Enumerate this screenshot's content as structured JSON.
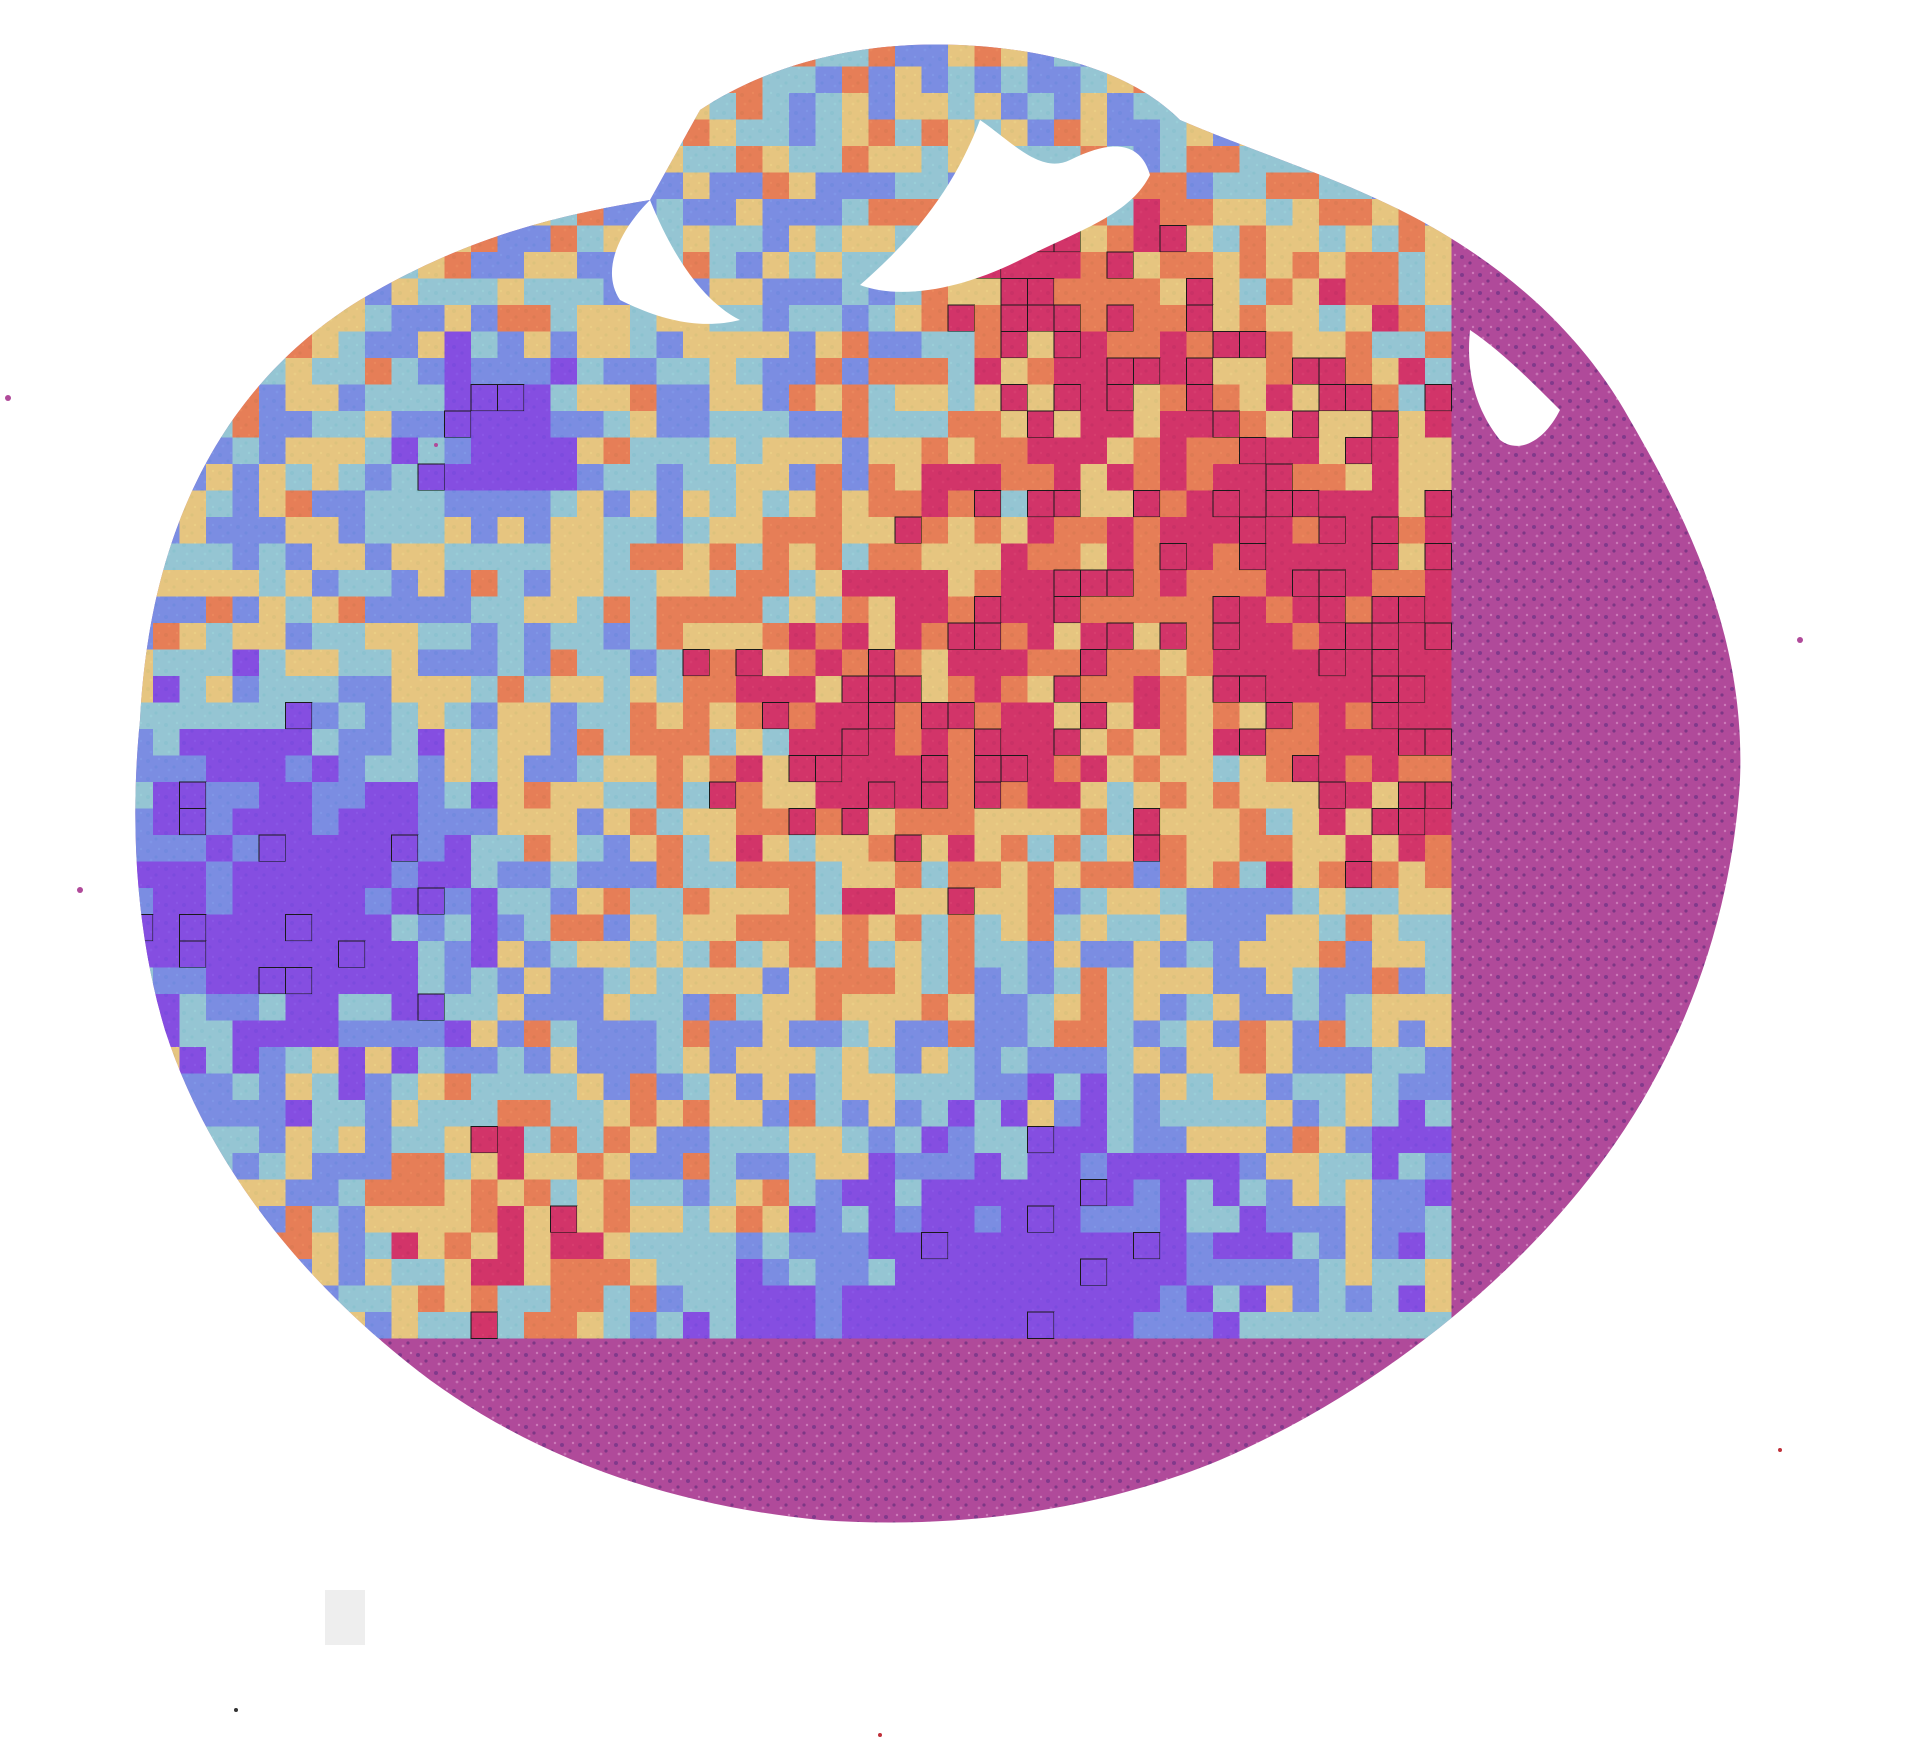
{
  "image": {
    "background_color": "#ffffff",
    "tissue_base_color": "#b04a9a",
    "tissue_light_color": "#d98fc6",
    "gap_color": "#ffffff"
  },
  "heatmap": {
    "palette": {
      "low": "#7b4ff0",
      "low_mid": "#6f9cf2",
      "mid": "#8fe0df",
      "mid_high": "#f2e07a",
      "high": "#f28a48",
      "very_high": "#d9305e"
    },
    "tile_opacity": 0.82,
    "outlined_tile_color": "#1a1a1a",
    "grid_columns": 51,
    "grid_rows": 49,
    "patch_count": 2016
  }
}
